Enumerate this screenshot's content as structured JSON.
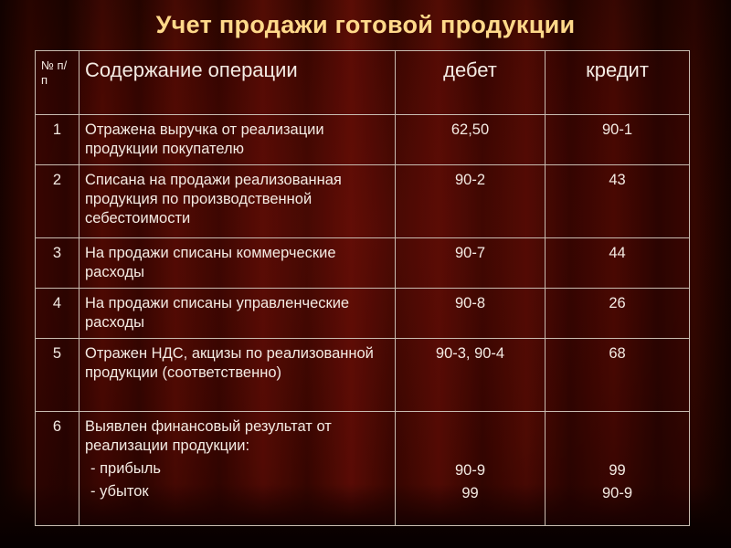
{
  "slide": {
    "title": "Учет продажи готовой продукции"
  },
  "table": {
    "header": {
      "num": "№ п/п",
      "operation": "Содержание операции",
      "debit": "дебет",
      "credit": "кредит"
    },
    "rows": [
      {
        "num": "1",
        "operation": "Отражена выручка от реализации продукции покупателю",
        "debit": "62,50",
        "credit": "90-1"
      },
      {
        "num": "2",
        "operation": "Списана на продажи реализованная продукция по производственной себестоимости",
        "debit": "90-2",
        "credit": "43"
      },
      {
        "num": "3",
        "operation": "На продажи списаны коммерческие расходы",
        "debit": "90-7",
        "credit": "44"
      },
      {
        "num": "4",
        "operation": "На продажи списаны управленческие расходы",
        "debit": "90-8",
        "credit": "26"
      },
      {
        "num": "5",
        "operation": "Отражен НДС, акцизы по реализованной продукции (соответственно)",
        "debit": "90-3, 90-4",
        "credit": "68"
      },
      {
        "num": "6",
        "operation": "Выявлен финансовый результат от реализации продукции:",
        "items": [
          "- прибыль",
          "- убыток"
        ],
        "debit_lines": [
          "90-9",
          "99"
        ],
        "credit_lines": [
          "99",
          "90-9"
        ]
      }
    ]
  },
  "colors": {
    "title": "#ffd98a",
    "text": "#f4ebe3",
    "border": "#c9bcb0",
    "background": "#3a0600"
  }
}
